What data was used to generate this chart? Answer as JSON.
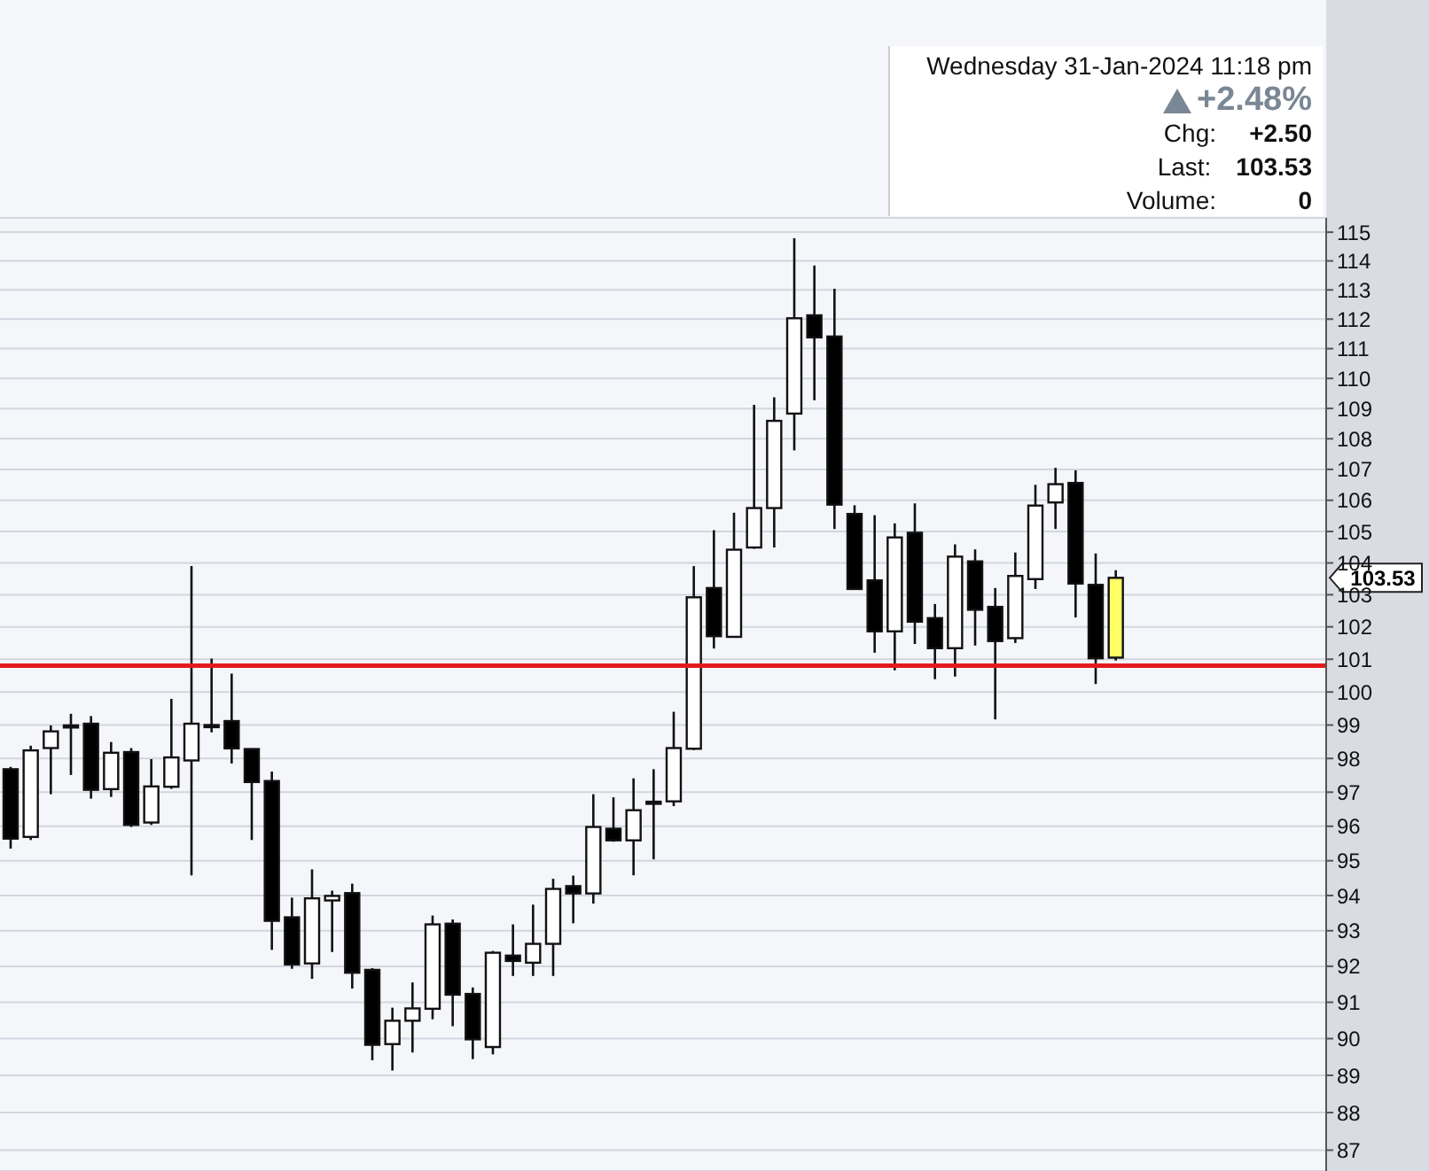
{
  "chart_data": {
    "type": "candlestick",
    "categories": [
      null,
      null,
      null,
      null,
      null,
      null,
      null,
      null,
      null,
      null,
      null,
      null,
      null,
      null,
      null,
      null,
      null,
      null,
      null,
      null,
      null,
      null,
      null,
      null,
      null,
      null,
      null,
      null,
      null,
      null,
      null,
      null,
      null,
      null,
      null,
      null,
      null,
      null,
      null,
      null,
      null,
      null,
      null,
      null,
      null,
      null,
      null,
      null,
      null,
      null,
      null,
      null,
      null,
      null,
      null,
      null,
      null,
      null,
      null,
      null,
      null,
      null,
      null,
      null,
      null,
      null
    ],
    "ohlc": [
      [
        97.68,
        97.75,
        95.35,
        95.64
      ],
      [
        95.69,
        98.38,
        95.6,
        98.24
      ],
      [
        98.31,
        98.99,
        96.94,
        98.81
      ],
      [
        98.95,
        99.34,
        97.51,
        98.99
      ],
      [
        99.04,
        99.27,
        96.81,
        97.07
      ],
      [
        97.09,
        98.49,
        96.86,
        98.17
      ],
      [
        98.19,
        98.31,
        95.98,
        96.04
      ],
      [
        96.11,
        97.98,
        96.04,
        97.17
      ],
      [
        97.16,
        99.79,
        97.1,
        98.03
      ],
      [
        97.94,
        103.9,
        94.58,
        99.04
      ],
      [
        99.0,
        101.02,
        98.78,
        98.95
      ],
      [
        99.12,
        100.56,
        97.85,
        98.3
      ],
      [
        98.28,
        98.3,
        95.6,
        97.3
      ],
      [
        97.33,
        97.61,
        92.46,
        93.28
      ],
      [
        93.38,
        93.94,
        91.93,
        92.05
      ],
      [
        92.08,
        94.75,
        91.65,
        93.92
      ],
      [
        93.86,
        94.14,
        92.4,
        93.99
      ],
      [
        94.07,
        94.34,
        91.38,
        91.82
      ],
      [
        91.9,
        91.95,
        89.41,
        89.83
      ],
      [
        89.85,
        90.85,
        89.13,
        90.49
      ],
      [
        90.49,
        91.55,
        89.62,
        90.83
      ],
      [
        90.82,
        93.43,
        90.53,
        93.18
      ],
      [
        93.2,
        93.32,
        90.34,
        91.21
      ],
      [
        91.23,
        91.41,
        89.44,
        89.98
      ],
      [
        89.77,
        92.43,
        89.57,
        92.38
      ],
      [
        92.3,
        93.18,
        91.73,
        92.15
      ],
      [
        92.1,
        93.74,
        91.73,
        92.63
      ],
      [
        92.63,
        94.48,
        91.73,
        94.19
      ],
      [
        94.27,
        94.57,
        93.21,
        94.06
      ],
      [
        94.06,
        96.94,
        93.77,
        95.98
      ],
      [
        95.93,
        96.85,
        95.55,
        95.59
      ],
      [
        95.59,
        97.41,
        94.58,
        96.47
      ],
      [
        96.66,
        97.68,
        95.04,
        96.72
      ],
      [
        96.73,
        99.4,
        96.59,
        98.31
      ],
      [
        98.29,
        103.9,
        98.25,
        102.92
      ],
      [
        103.21,
        105.04,
        101.33,
        101.71
      ],
      [
        101.69,
        105.6,
        101.66,
        104.42
      ],
      [
        104.49,
        109.12,
        104.45,
        105.75
      ],
      [
        105.75,
        109.37,
        104.49,
        108.59
      ],
      [
        108.83,
        114.79,
        107.62,
        112.03
      ],
      [
        112.13,
        113.84,
        109.27,
        111.38
      ],
      [
        111.41,
        113.04,
        105.08,
        105.86
      ],
      [
        105.56,
        105.84,
        103.15,
        103.18
      ],
      [
        103.45,
        105.52,
        101.2,
        101.86
      ],
      [
        101.86,
        105.26,
        100.66,
        104.81
      ],
      [
        104.96,
        105.9,
        101.47,
        102.16
      ],
      [
        102.27,
        102.71,
        100.39,
        101.34
      ],
      [
        101.34,
        104.59,
        100.47,
        104.2
      ],
      [
        104.05,
        104.43,
        101.42,
        102.53
      ],
      [
        102.62,
        103.21,
        99.17,
        101.56
      ],
      [
        101.65,
        104.33,
        101.5,
        103.59
      ],
      [
        103.49,
        106.5,
        103.18,
        105.83
      ],
      [
        105.93,
        107.05,
        105.08,
        106.52
      ],
      [
        106.56,
        106.97,
        102.29,
        103.35
      ],
      [
        103.31,
        104.3,
        100.24,
        101.03
      ],
      [
        101.05,
        103.77,
        100.96,
        103.53
      ],
      null,
      null,
      null,
      null,
      null,
      null,
      null,
      null,
      null,
      null
    ],
    "colors": [
      "#000000",
      "#ffffff",
      "#ffffff",
      "#ffffff",
      "#000000",
      "#ffffff",
      "#000000",
      "#ffffff",
      "#ffffff",
      "#ffffff",
      "#000000",
      "#000000",
      "#000000",
      "#000000",
      "#000000",
      "#ffffff",
      "#ffffff",
      "#000000",
      "#000000",
      "#ffffff",
      "#ffffff",
      "#ffffff",
      "#000000",
      "#000000",
      "#ffffff",
      "#000000",
      "#ffffff",
      "#ffffff",
      "#000000",
      "#ffffff",
      "#000000",
      "#ffffff",
      "#ffffff",
      "#ffffff",
      "#ffffff",
      "#000000",
      "#ffffff",
      "#ffffff",
      "#ffffff",
      "#ffffff",
      "#000000",
      "#000000",
      "#000000",
      "#000000",
      "#ffffff",
      "#000000",
      "#000000",
      "#ffffff",
      "#000000",
      "#000000",
      "#ffffff",
      "#ffffff",
      "#ffffff",
      "#000000",
      "#000000",
      "#ffff66",
      null,
      null,
      null,
      null,
      null,
      null,
      null,
      null,
      null,
      null
    ],
    "ylim": [
      86.45,
      115.5
    ],
    "yticks": [
      87,
      88,
      89,
      90,
      91,
      92,
      93,
      94,
      95,
      96,
      97,
      98,
      99,
      100,
      101,
      102,
      103,
      104,
      105,
      106,
      107,
      108,
      109,
      110,
      111,
      112,
      113,
      114,
      115
    ],
    "log": "y",
    "grid": "y",
    "tick_labels": "y",
    "ref_lines": [
      {
        "axis": "y",
        "value": 100.8,
        "color": "#e31a1c"
      }
    ],
    "annotations": [
      "Wednesday  31-Jan-2024  11:18 pm",
      "+2.48%",
      "Chg:",
      "+2.50",
      "Last:",
      "103.53",
      "Volume:",
      "0",
      "103.53"
    ]
  }
}
